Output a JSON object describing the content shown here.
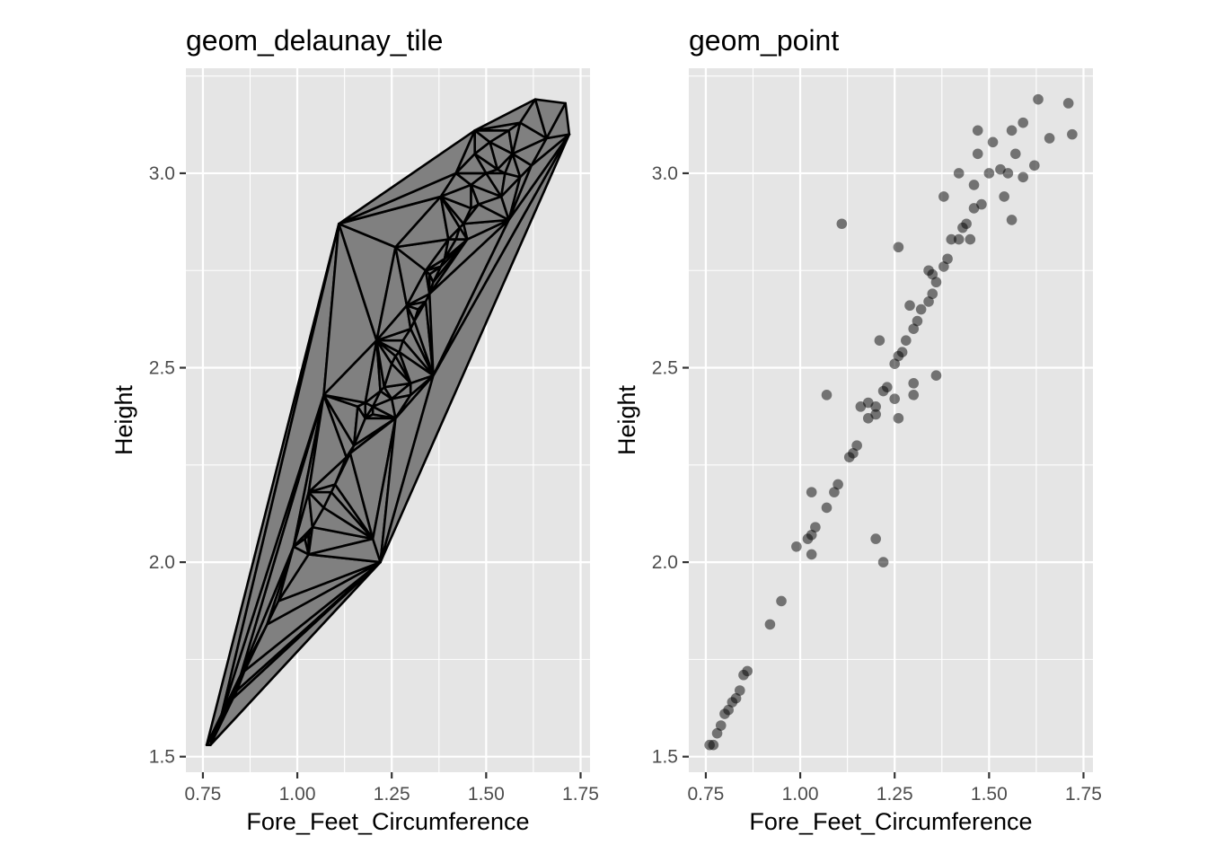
{
  "chart_data": [
    {
      "type": "delaunay",
      "title": "geom_delaunay_tile",
      "xlabel": "Fore_Feet_Circumference",
      "ylabel": "Height",
      "xlim": [
        0.75,
        1.75
      ],
      "ylim": [
        1.5,
        3.2
      ],
      "xticks": [
        0.75,
        1.0,
        1.25,
        1.5,
        1.75
      ],
      "xtick_labels": [
        "0.75",
        "1.00",
        "1.25",
        "1.50",
        "1.75"
      ],
      "yticks": [
        1.5,
        2.0,
        2.5,
        3.0
      ],
      "ytick_labels": [
        "1.5",
        "2.0",
        "2.5",
        "3.0"
      ],
      "grid": true,
      "fill_color": "#808080",
      "edge_color": "#000000",
      "points_source": "shared"
    },
    {
      "type": "scatter",
      "title": "geom_point",
      "xlabel": "Fore_Feet_Circumference",
      "ylabel": "Height",
      "xlim": [
        0.75,
        1.75
      ],
      "ylim": [
        1.5,
        3.2
      ],
      "xticks": [
        0.75,
        1.0,
        1.25,
        1.5,
        1.75
      ],
      "xtick_labels": [
        "0.75",
        "1.00",
        "1.25",
        "1.50",
        "1.75"
      ],
      "yticks": [
        1.5,
        2.0,
        2.5,
        3.0
      ],
      "ytick_labels": [
        "1.5",
        "2.0",
        "2.5",
        "3.0"
      ],
      "grid": true,
      "point_color": "#000000",
      "point_alpha": 0.5,
      "points": [
        [
          0.76,
          1.53
        ],
        [
          0.77,
          1.53
        ],
        [
          0.78,
          1.56
        ],
        [
          0.79,
          1.58
        ],
        [
          0.8,
          1.61
        ],
        [
          0.81,
          1.62
        ],
        [
          0.82,
          1.64
        ],
        [
          0.83,
          1.65
        ],
        [
          0.84,
          1.67
        ],
        [
          0.85,
          1.71
        ],
        [
          0.86,
          1.72
        ],
        [
          0.92,
          1.84
        ],
        [
          0.95,
          1.9
        ],
        [
          0.99,
          2.04
        ],
        [
          1.02,
          2.06
        ],
        [
          1.03,
          2.02
        ],
        [
          1.03,
          2.07
        ],
        [
          1.04,
          2.09
        ],
        [
          1.03,
          2.18
        ],
        [
          1.07,
          2.14
        ],
        [
          1.09,
          2.18
        ],
        [
          1.1,
          2.2
        ],
        [
          1.11,
          2.87
        ],
        [
          1.07,
          2.43
        ],
        [
          1.13,
          2.27
        ],
        [
          1.14,
          2.28
        ],
        [
          1.15,
          2.3
        ],
        [
          1.16,
          2.4
        ],
        [
          1.18,
          2.37
        ],
        [
          1.18,
          2.41
        ],
        [
          1.2,
          2.38
        ],
        [
          1.2,
          2.4
        ],
        [
          1.2,
          2.06
        ],
        [
          1.21,
          2.57
        ],
        [
          1.22,
          2.0
        ],
        [
          1.22,
          2.44
        ],
        [
          1.23,
          2.45
        ],
        [
          1.25,
          2.42
        ],
        [
          1.25,
          2.51
        ],
        [
          1.26,
          2.37
        ],
        [
          1.26,
          2.53
        ],
        [
          1.27,
          2.54
        ],
        [
          1.26,
          2.81
        ],
        [
          1.28,
          2.57
        ],
        [
          1.29,
          2.66
        ],
        [
          1.3,
          2.43
        ],
        [
          1.3,
          2.46
        ],
        [
          1.3,
          2.6
        ],
        [
          1.31,
          2.62
        ],
        [
          1.32,
          2.65
        ],
        [
          1.34,
          2.67
        ],
        [
          1.34,
          2.75
        ],
        [
          1.35,
          2.69
        ],
        [
          1.35,
          2.74
        ],
        [
          1.36,
          2.48
        ],
        [
          1.36,
          2.72
        ],
        [
          1.38,
          2.76
        ],
        [
          1.38,
          2.94
        ],
        [
          1.39,
          2.78
        ],
        [
          1.4,
          2.83
        ],
        [
          1.42,
          2.83
        ],
        [
          1.42,
          3.0
        ],
        [
          1.43,
          2.86
        ],
        [
          1.44,
          2.87
        ],
        [
          1.45,
          2.83
        ],
        [
          1.46,
          2.91
        ],
        [
          1.46,
          2.97
        ],
        [
          1.47,
          3.05
        ],
        [
          1.47,
          3.11
        ],
        [
          1.48,
          2.92
        ],
        [
          1.5,
          3.0
        ],
        [
          1.51,
          3.08
        ],
        [
          1.53,
          3.01
        ],
        [
          1.54,
          2.94
        ],
        [
          1.55,
          3.0
        ],
        [
          1.56,
          2.88
        ],
        [
          1.56,
          3.11
        ],
        [
          1.57,
          3.05
        ],
        [
          1.59,
          2.99
        ],
        [
          1.59,
          3.13
        ],
        [
          1.62,
          3.02
        ],
        [
          1.63,
          3.19
        ],
        [
          1.66,
          3.09
        ],
        [
          1.71,
          3.18
        ],
        [
          1.72,
          3.1
        ]
      ]
    }
  ]
}
